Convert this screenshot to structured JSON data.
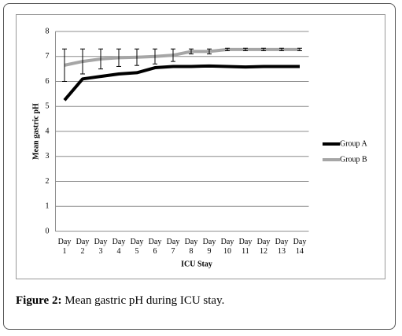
{
  "chart_data": {
    "type": "line",
    "x_label": "ICU Stay",
    "y_label": "Mean gastric pH",
    "categories": [
      "Day 1",
      "Day 2",
      "Day 3",
      "Day 4",
      "Day 5",
      "Day 6",
      "Day 7",
      "Day 8",
      "Day 9",
      "Day 10",
      "Day 11",
      "Day 12",
      "Day 13",
      "Day 14"
    ],
    "series": [
      {
        "name": "Group A",
        "color": "#000000",
        "values": [
          5.25,
          6.1,
          6.2,
          6.3,
          6.35,
          6.55,
          6.6,
          6.6,
          6.62,
          6.6,
          6.58,
          6.6,
          6.6,
          6.6
        ]
      },
      {
        "name": "Group B",
        "color": "#a6a6a6",
        "values": [
          6.65,
          6.8,
          6.9,
          6.95,
          6.97,
          7.0,
          7.05,
          7.2,
          7.2,
          7.28,
          7.28,
          7.28,
          7.28,
          7.28
        ],
        "errors": [
          0.65,
          0.5,
          0.4,
          0.35,
          0.33,
          0.3,
          0.25,
          0.1,
          0.1,
          0.05,
          0.05,
          0.05,
          0.05,
          0.05
        ]
      }
    ],
    "ylim": [
      0,
      8
    ],
    "yticks": [
      0,
      1,
      2,
      3,
      4,
      5,
      6,
      7,
      8
    ],
    "grid": true,
    "legend": "right"
  },
  "caption": {
    "label": "Figure 2:",
    "text": "Mean gastric pH during ICU stay."
  }
}
